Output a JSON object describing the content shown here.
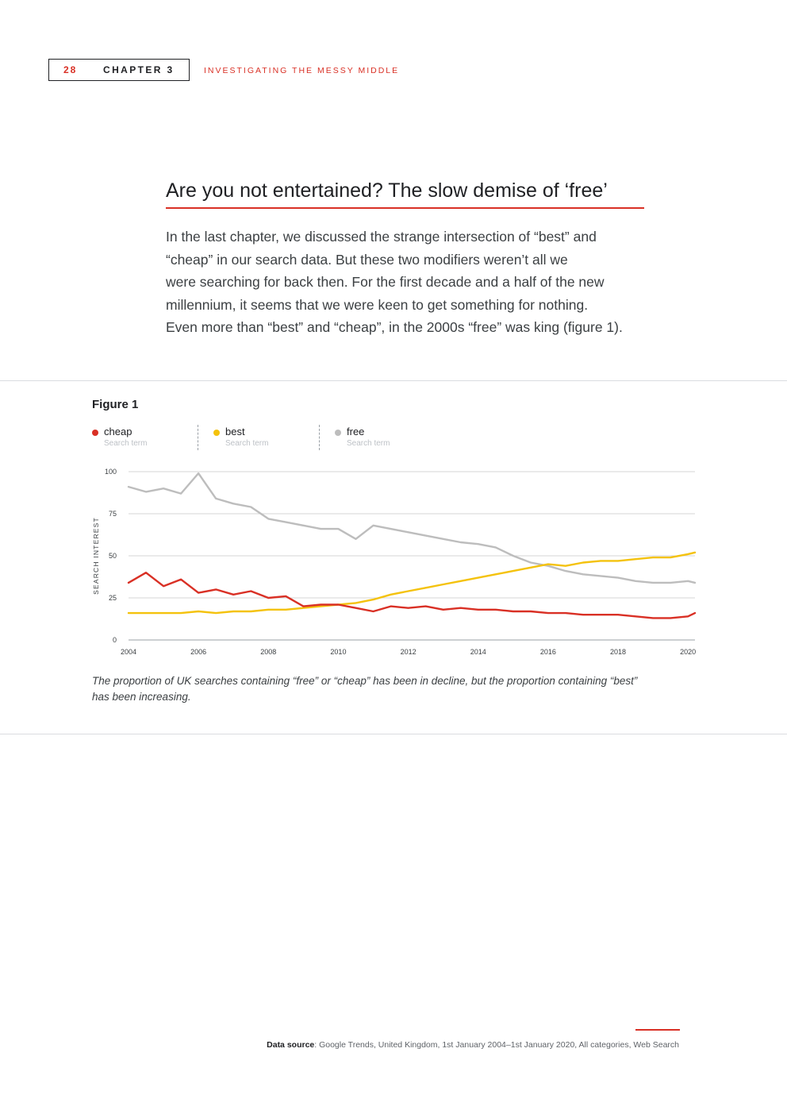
{
  "header": {
    "page_number": "28",
    "chapter": "CHAPTER 3",
    "running_title": "INVESTIGATING THE MESSY MIDDLE"
  },
  "article": {
    "title": "Are you not entertained? The slow demise of ‘free’",
    "paragraph_lines": [
      "In the last chapter, we discussed the strange intersection of “best” and",
      "“cheap” in our search data. But these two modifiers weren’t all we",
      "were searching for back then. For the first decade and a half of the new",
      "millennium, it seems that we were keen to get something for nothing.",
      "Even more than “best” and “cheap”, in the 2000s “free” was king (figure 1)."
    ]
  },
  "figure": {
    "label": "Figure 1",
    "legend": [
      {
        "name": "cheap",
        "sub": "Search term",
        "color": "#d93025"
      },
      {
        "name": "best",
        "sub": "Search term",
        "color": "#f4c20d"
      },
      {
        "name": "free",
        "sub": "Search term",
        "color": "#bdbdbd"
      }
    ],
    "caption_line1": "The proportion of UK searches containing “free” or “cheap” has been in decline, but the proportion containing “best”",
    "caption_line2": "has been increasing."
  },
  "chart_data": {
    "type": "line",
    "title": "",
    "xlabel": "",
    "ylabel": "SEARCH INTEREST",
    "xlim": [
      2004,
      2020.2
    ],
    "ylim": [
      0,
      100
    ],
    "x_ticks": [
      2004,
      2006,
      2008,
      2010,
      2012,
      2014,
      2016,
      2018,
      2020
    ],
    "y_ticks": [
      0,
      25,
      50,
      75,
      100
    ],
    "grid": true,
    "x": [
      2004.0,
      2004.5,
      2005.0,
      2005.5,
      2006.0,
      2006.5,
      2007.0,
      2007.5,
      2008.0,
      2008.5,
      2009.0,
      2009.5,
      2010.0,
      2010.5,
      2011.0,
      2011.5,
      2012.0,
      2012.5,
      2013.0,
      2013.5,
      2014.0,
      2014.5,
      2015.0,
      2015.5,
      2016.0,
      2016.5,
      2017.0,
      2017.5,
      2018.0,
      2018.5,
      2019.0,
      2019.5,
      2020.0,
      2020.2
    ],
    "series": [
      {
        "name": "cheap",
        "color": "#d93025",
        "values": [
          34,
          40,
          32,
          36,
          28,
          30,
          27,
          29,
          25,
          26,
          20,
          21,
          21,
          19,
          17,
          20,
          19,
          20,
          18,
          19,
          18,
          18,
          17,
          17,
          16,
          16,
          15,
          15,
          15,
          14,
          13,
          13,
          14,
          16
        ]
      },
      {
        "name": "best",
        "color": "#f4c20d",
        "values": [
          16,
          16,
          16,
          16,
          17,
          16,
          17,
          17,
          18,
          18,
          19,
          20,
          21,
          22,
          24,
          27,
          29,
          31,
          33,
          35,
          37,
          39,
          41,
          43,
          45,
          44,
          46,
          47,
          47,
          48,
          49,
          49,
          51,
          52
        ]
      },
      {
        "name": "free",
        "color": "#bdbdbd",
        "values": [
          91,
          88,
          90,
          87,
          99,
          84,
          81,
          79,
          72,
          70,
          68,
          66,
          66,
          60,
          68,
          66,
          64,
          62,
          60,
          58,
          57,
          55,
          50,
          46,
          44,
          41,
          39,
          38,
          37,
          35,
          34,
          34,
          35,
          34
        ]
      }
    ]
  },
  "footer": {
    "source_label": "Data source",
    "source_text": ": Google Trends, United Kingdom, 1st January 2004–1st January 2020, All categories, Web Search"
  }
}
